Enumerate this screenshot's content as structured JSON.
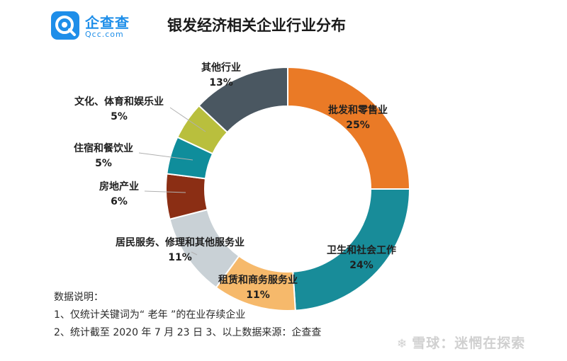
{
  "logo": {
    "name": "企查查",
    "sub": "Qcc.com"
  },
  "chart_data": {
    "type": "pie",
    "variant": "donut",
    "title": "银发经济相关企业行业分布",
    "slices": [
      {
        "label": "批发和零售业",
        "value": 25,
        "pct_text": "25%",
        "color": "#ea7a26"
      },
      {
        "label": "卫生和社会工作",
        "value": 24,
        "pct_text": "24%",
        "color": "#188c99"
      },
      {
        "label": "租赁和商务服务业",
        "value": 11,
        "pct_text": "11%",
        "color": "#f6b96b"
      },
      {
        "label": "居民服务、修理和其他服务业",
        "value": 11,
        "pct_text": "11%",
        "color": "#c9d1d6"
      },
      {
        "label": "房地产业",
        "value": 6,
        "pct_text": "6%",
        "color": "#8b2e14"
      },
      {
        "label": "住宿和餐饮业",
        "value": 5,
        "pct_text": "5%",
        "color": "#0f8d9b"
      },
      {
        "label": "文化、体育和娱乐业",
        "value": 5,
        "pct_text": "5%",
        "color": "#b9bf3d"
      },
      {
        "label": "其他行业",
        "value": 13,
        "pct_text": "13%",
        "color": "#4a5761"
      }
    ]
  },
  "notes": {
    "heading": "数据说明：",
    "line1": "1、仅统计关键词为“ 老年 ”的在业存续企业",
    "line2": "2、统计截至 2020 年 7 月 23 日    3、以上数据来源：企查查"
  },
  "watermark": {
    "icon": "❄",
    "text": "雪球：迷惘在探索"
  }
}
